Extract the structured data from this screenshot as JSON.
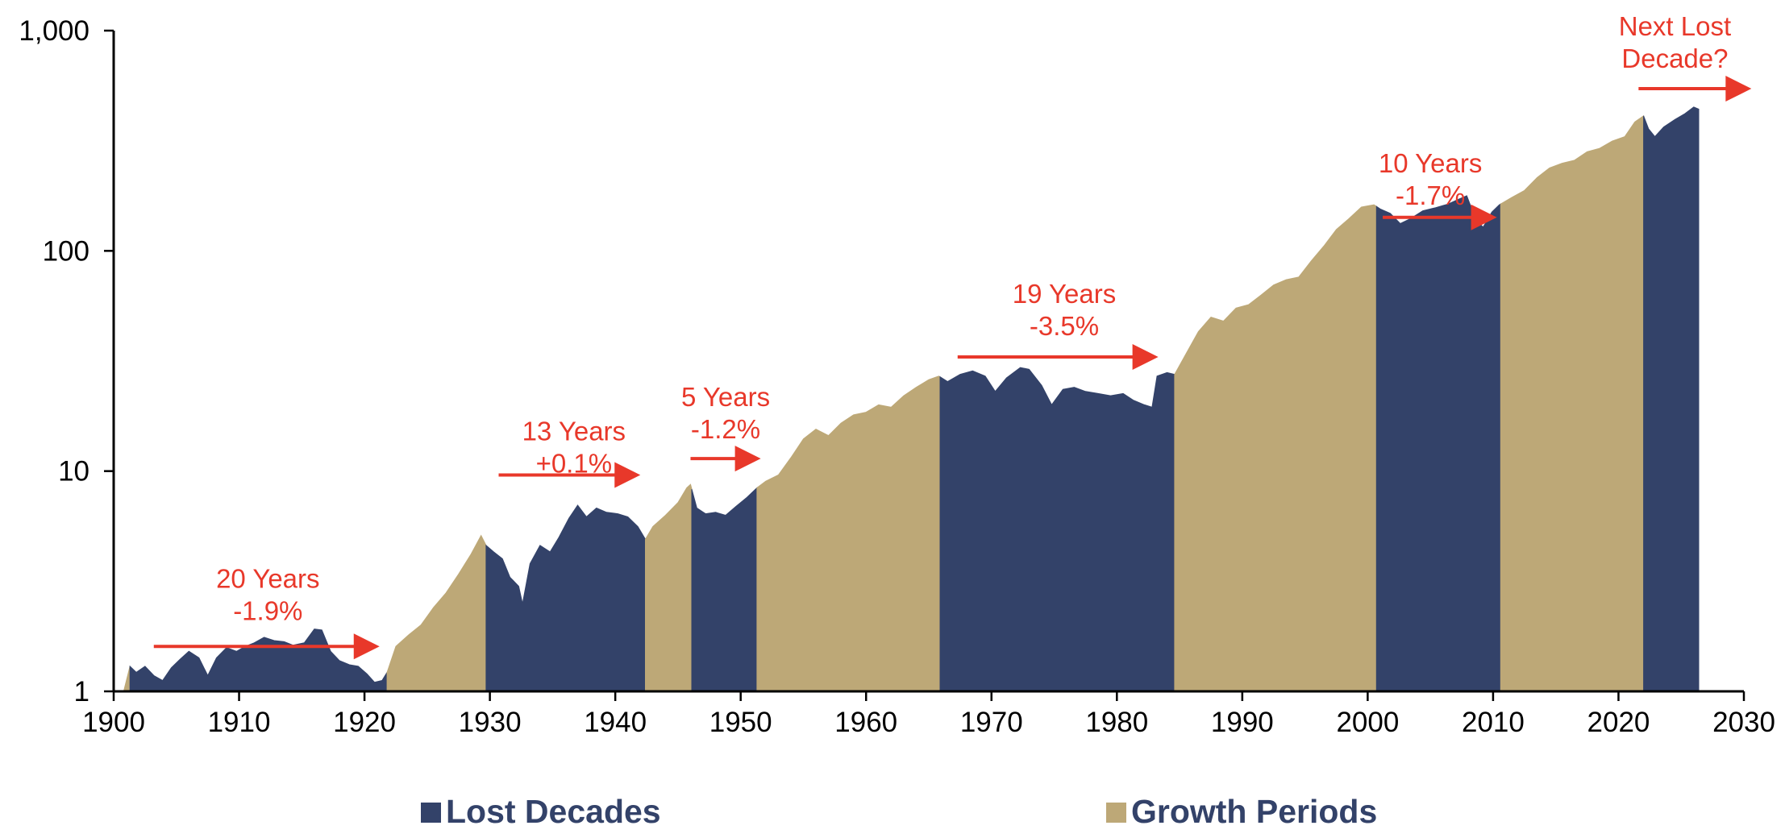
{
  "chart_data": {
    "type": "area",
    "title": "",
    "xlabel": "",
    "ylabel": "",
    "x_scale": "linear",
    "y_scale": "log",
    "xlim": [
      1900,
      2030
    ],
    "ylim": [
      1,
      1000
    ],
    "x_ticks": [
      1900,
      1910,
      1920,
      1930,
      1940,
      1950,
      1960,
      1970,
      1980,
      1990,
      2000,
      2010,
      2020,
      2030
    ],
    "x_tick_labels": [
      "1900",
      "1910",
      "1920",
      "1930",
      "1940",
      "1950",
      "1960",
      "1970",
      "1980",
      "1990",
      "2000",
      "2010",
      "2020",
      "2030"
    ],
    "y_ticks": [
      1,
      10,
      100,
      1000
    ],
    "y_tick_labels": [
      "1",
      "10",
      "100",
      "1,000"
    ],
    "grid": false,
    "legend_position": "bottom",
    "colors": {
      "lost": "#334269",
      "growth": "#bda877",
      "annotation": "#e8382a"
    },
    "legend": [
      {
        "key": "lost",
        "label": "Lost Decades"
      },
      {
        "key": "growth",
        "label": "Growth Periods"
      }
    ],
    "series_points": [
      [
        1900.8,
        1.0
      ],
      [
        1901.3,
        1.3
      ],
      [
        1901.8,
        1.22
      ],
      [
        1902.5,
        1.3
      ],
      [
        1903.2,
        1.18
      ],
      [
        1903.9,
        1.12
      ],
      [
        1904.6,
        1.28
      ],
      [
        1905.3,
        1.4
      ],
      [
        1906.0,
        1.52
      ],
      [
        1906.8,
        1.42
      ],
      [
        1907.5,
        1.18
      ],
      [
        1908.2,
        1.42
      ],
      [
        1909.0,
        1.58
      ],
      [
        1909.8,
        1.52
      ],
      [
        1910.5,
        1.6
      ],
      [
        1911.2,
        1.66
      ],
      [
        1912.0,
        1.76
      ],
      [
        1912.8,
        1.7
      ],
      [
        1913.6,
        1.68
      ],
      [
        1914.3,
        1.62
      ],
      [
        1915.2,
        1.66
      ],
      [
        1916.0,
        1.92
      ],
      [
        1916.6,
        1.9
      ],
      [
        1917.3,
        1.52
      ],
      [
        1918.0,
        1.38
      ],
      [
        1918.8,
        1.32
      ],
      [
        1919.5,
        1.3
      ],
      [
        1920.2,
        1.2
      ],
      [
        1920.8,
        1.1
      ],
      [
        1921.4,
        1.12
      ],
      [
        1921.8,
        1.22
      ],
      [
        1922.5,
        1.6
      ],
      [
        1923.5,
        1.8
      ],
      [
        1924.5,
        2.0
      ],
      [
        1925.5,
        2.4
      ],
      [
        1926.5,
        2.8
      ],
      [
        1927.5,
        3.4
      ],
      [
        1928.5,
        4.2
      ],
      [
        1929.3,
        5.1
      ],
      [
        1929.7,
        4.6
      ],
      [
        1930.3,
        4.3
      ],
      [
        1931.0,
        4.0
      ],
      [
        1931.6,
        3.3
      ],
      [
        1932.3,
        3.0
      ],
      [
        1932.6,
        2.5
      ],
      [
        1933.2,
        3.8
      ],
      [
        1934.0,
        4.6
      ],
      [
        1934.8,
        4.3
      ],
      [
        1935.5,
        5.0
      ],
      [
        1936.3,
        6.1
      ],
      [
        1937.0,
        7.0
      ],
      [
        1937.7,
        6.2
      ],
      [
        1938.5,
        6.8
      ],
      [
        1939.3,
        6.5
      ],
      [
        1940.2,
        6.4
      ],
      [
        1941.0,
        6.2
      ],
      [
        1941.8,
        5.6
      ],
      [
        1942.4,
        4.9
      ],
      [
        1943.0,
        5.6
      ],
      [
        1944.0,
        6.3
      ],
      [
        1945.0,
        7.2
      ],
      [
        1945.7,
        8.4
      ],
      [
        1946.0,
        8.7
      ],
      [
        1946.5,
        6.8
      ],
      [
        1947.2,
        6.4
      ],
      [
        1948.0,
        6.5
      ],
      [
        1948.8,
        6.3
      ],
      [
        1949.6,
        6.9
      ],
      [
        1950.5,
        7.6
      ],
      [
        1951.3,
        8.4
      ],
      [
        1952.0,
        9.0
      ],
      [
        1953.0,
        9.6
      ],
      [
        1954.0,
        11.5
      ],
      [
        1955.0,
        14.0
      ],
      [
        1956.0,
        15.5
      ],
      [
        1957.0,
        14.5
      ],
      [
        1958.0,
        16.5
      ],
      [
        1959.0,
        18.0
      ],
      [
        1960.0,
        18.5
      ],
      [
        1961.0,
        20.0
      ],
      [
        1962.0,
        19.5
      ],
      [
        1963.0,
        22.0
      ],
      [
        1964.0,
        24.0
      ],
      [
        1965.0,
        26.0
      ],
      [
        1965.8,
        27.0
      ],
      [
        1966.5,
        25.5
      ],
      [
        1967.5,
        27.5
      ],
      [
        1968.5,
        28.5
      ],
      [
        1969.5,
        27.0
      ],
      [
        1970.3,
        23.0
      ],
      [
        1971.2,
        26.5
      ],
      [
        1972.3,
        29.5
      ],
      [
        1973.0,
        29.0
      ],
      [
        1974.0,
        24.5
      ],
      [
        1974.8,
        20.0
      ],
      [
        1975.7,
        23.5
      ],
      [
        1976.6,
        24.0
      ],
      [
        1977.5,
        23.0
      ],
      [
        1978.5,
        22.5
      ],
      [
        1979.5,
        22.0
      ],
      [
        1980.5,
        22.5
      ],
      [
        1981.3,
        21.0
      ],
      [
        1982.2,
        20.0
      ],
      [
        1982.8,
        19.5
      ],
      [
        1983.2,
        27.0
      ],
      [
        1984.0,
        28.0
      ],
      [
        1984.6,
        27.5
      ],
      [
        1985.5,
        34.0
      ],
      [
        1986.5,
        43.0
      ],
      [
        1987.5,
        50.0
      ],
      [
        1988.5,
        48.0
      ],
      [
        1989.5,
        55.0
      ],
      [
        1990.5,
        57.0
      ],
      [
        1991.5,
        63.0
      ],
      [
        1992.5,
        70.0
      ],
      [
        1993.5,
        74.0
      ],
      [
        1994.5,
        76.0
      ],
      [
        1995.5,
        90.0
      ],
      [
        1996.5,
        105.0
      ],
      [
        1997.5,
        125.0
      ],
      [
        1998.5,
        140.0
      ],
      [
        1999.5,
        158.0
      ],
      [
        2000.5,
        162.0
      ],
      [
        2001.0,
        155.0
      ],
      [
        2001.8,
        148.0
      ],
      [
        2002.6,
        133.0
      ],
      [
        2003.4,
        140.0
      ],
      [
        2004.4,
        152.0
      ],
      [
        2005.4,
        157.0
      ],
      [
        2006.4,
        163.0
      ],
      [
        2007.3,
        172.0
      ],
      [
        2007.9,
        178.0
      ],
      [
        2008.6,
        140.0
      ],
      [
        2009.2,
        128.0
      ],
      [
        2009.9,
        150.0
      ],
      [
        2010.5,
        162.0
      ],
      [
        2011.5,
        175.0
      ],
      [
        2012.5,
        188.0
      ],
      [
        2013.5,
        215.0
      ],
      [
        2014.5,
        238.0
      ],
      [
        2015.5,
        250.0
      ],
      [
        2016.5,
        258.0
      ],
      [
        2017.5,
        282.0
      ],
      [
        2018.5,
        292.0
      ],
      [
        2019.5,
        315.0
      ],
      [
        2020.5,
        330.0
      ],
      [
        2021.3,
        385.0
      ],
      [
        2022.0,
        410.0
      ],
      [
        2022.4,
        358.0
      ],
      [
        2022.9,
        330.0
      ],
      [
        2023.6,
        365.0
      ],
      [
        2024.5,
        395.0
      ],
      [
        2025.3,
        420.0
      ],
      [
        2026.0,
        450.0
      ],
      [
        2026.4,
        440.0
      ]
    ],
    "periods": [
      {
        "type": "growth",
        "start": 1900.8,
        "end": 1901.3
      },
      {
        "type": "lost",
        "start": 1901.3,
        "end": 1921.8
      },
      {
        "type": "growth",
        "start": 1921.8,
        "end": 1929.7
      },
      {
        "type": "lost",
        "start": 1929.7,
        "end": 1942.4
      },
      {
        "type": "growth",
        "start": 1942.4,
        "end": 1946.1
      },
      {
        "type": "lost",
        "start": 1946.1,
        "end": 1951.3
      },
      {
        "type": "growth",
        "start": 1951.3,
        "end": 1965.9
      },
      {
        "type": "lost",
        "start": 1965.9,
        "end": 1984.6
      },
      {
        "type": "growth",
        "start": 1984.6,
        "end": 2000.7
      },
      {
        "type": "lost",
        "start": 2000.7,
        "end": 2010.6
      },
      {
        "type": "growth",
        "start": 2010.6,
        "end": 2022.0
      },
      {
        "type": "lost",
        "start": 2022.0,
        "end": 2026.4
      }
    ],
    "annotations": [
      {
        "lines": [
          "20 Years",
          "-1.9%"
        ],
        "text_x": 1912.3,
        "text_y": 2.95,
        "arrow_x": [
          1903.2,
          1921.2
        ],
        "arrow_y": 1.6
      },
      {
        "lines": [
          "13 Years",
          "+0.1%"
        ],
        "text_x": 1936.7,
        "text_y": 13.8,
        "arrow_x": [
          1930.7,
          1942.0
        ],
        "arrow_y": 9.6
      },
      {
        "lines": [
          "5 Years",
          "-1.2%"
        ],
        "text_x": 1948.8,
        "text_y": 19.7,
        "arrow_x": [
          1946.0,
          1951.6
        ],
        "arrow_y": 11.4
      },
      {
        "lines": [
          "19 Years",
          "-3.5%"
        ],
        "text_x": 1975.8,
        "text_y": 58.0,
        "arrow_x": [
          1967.3,
          1983.3
        ],
        "arrow_y": 33.0
      },
      {
        "lines": [
          "10 Years",
          "-1.7%"
        ],
        "text_x": 2005.0,
        "text_y": 227.0,
        "arrow_x": [
          2001.2,
          2010.3
        ],
        "arrow_y": 142.0
      },
      {
        "lines": [
          "Next Lost",
          "Decade?"
        ],
        "text_x": 2024.5,
        "text_y": 950.0,
        "arrow_x": [
          2021.6,
          2030.6
        ],
        "arrow_y": 545.0
      }
    ]
  }
}
